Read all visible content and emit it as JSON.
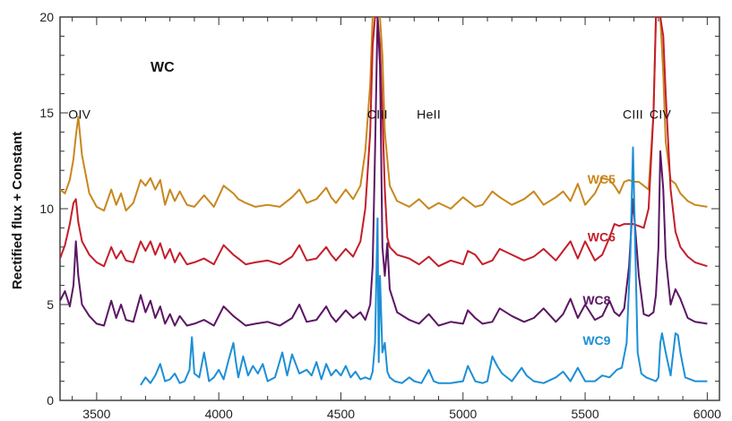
{
  "colors": {
    "axis": "#333333",
    "wc5": "#C8871E",
    "wc6": "#C41E2A",
    "wc8": "#5B1664",
    "wc9": "#1D8FD6"
  },
  "chart_data": {
    "type": "line",
    "title": "WC",
    "xlabel": "",
    "ylabel": "Rectified flux + Constant",
    "xlim": [
      3350,
      6050
    ],
    "ylim": [
      0,
      20
    ],
    "xticks": [
      3500,
      4000,
      4500,
      5000,
      5500,
      6000
    ],
    "yticks": [
      0,
      5,
      10,
      15,
      20
    ],
    "grid": false,
    "line_annotations": [
      {
        "text": "OIV",
        "x": 3430,
        "y": 14.7
      },
      {
        "text": "CIII",
        "x": 4650,
        "y": 14.7
      },
      {
        "text": "HeII",
        "x": 4860,
        "y": 14.7
      },
      {
        "text": "CIII",
        "x": 5696,
        "y": 14.7
      },
      {
        "text": "CIV",
        "x": 5808,
        "y": 14.7
      }
    ],
    "series": [
      {
        "name": "WC5",
        "label_pos": {
          "x": 5510,
          "y": 11.3
        },
        "x": [
          3350,
          3370,
          3390,
          3405,
          3415,
          3425,
          3440,
          3470,
          3500,
          3530,
          3560,
          3580,
          3600,
          3620,
          3650,
          3680,
          3700,
          3720,
          3740,
          3760,
          3780,
          3800,
          3820,
          3840,
          3870,
          3900,
          3940,
          3980,
          4020,
          4060,
          4080,
          4110,
          4150,
          4200,
          4250,
          4300,
          4330,
          4360,
          4400,
          4440,
          4460,
          4480,
          4520,
          4550,
          4580,
          4600,
          4620,
          4630,
          4640,
          4650,
          4660,
          4670,
          4680,
          4700,
          4730,
          4780,
          4820,
          4860,
          4900,
          4950,
          5000,
          5020,
          5050,
          5080,
          5120,
          5150,
          5200,
          5250,
          5290,
          5330,
          5380,
          5410,
          5440,
          5470,
          5500,
          5540,
          5570,
          5600,
          5620,
          5640,
          5660,
          5680,
          5696,
          5720,
          5740,
          5760,
          5780,
          5790,
          5800,
          5808,
          5820,
          5830,
          5850,
          5870,
          5890,
          5920,
          5950,
          6000
        ],
        "y": [
          11.0,
          10.8,
          11.5,
          12.6,
          13.8,
          14.8,
          12.8,
          10.8,
          10.1,
          9.9,
          11.0,
          10.2,
          10.8,
          9.9,
          10.3,
          11.5,
          11.2,
          11.6,
          11.0,
          11.5,
          10.2,
          11.0,
          10.4,
          10.9,
          10.2,
          10.1,
          10.7,
          10.1,
          11.2,
          10.8,
          10.5,
          10.3,
          10.1,
          10.2,
          10.1,
          10.6,
          11.0,
          10.3,
          10.5,
          11.1,
          10.6,
          10.3,
          11.0,
          10.5,
          11.2,
          13.0,
          16.5,
          20,
          20,
          20,
          20,
          18.0,
          14.0,
          11.2,
          10.4,
          10.1,
          10.5,
          10.0,
          10.3,
          10.0,
          10.6,
          10.4,
          10.1,
          10.2,
          10.9,
          10.6,
          10.2,
          10.5,
          10.9,
          10.2,
          10.6,
          10.9,
          10.4,
          11.3,
          10.2,
          10.8,
          11.6,
          11.5,
          11.2,
          10.8,
          11.4,
          11.5,
          11.4,
          11.4,
          11.2,
          11.0,
          15.0,
          20,
          20,
          20,
          17.0,
          13.5,
          11.5,
          11.3,
          10.8,
          10.4,
          10.2,
          10.1
        ]
      },
      {
        "name": "WC6",
        "label_pos": {
          "x": 5510,
          "y": 8.3
        },
        "x": [
          3350,
          3370,
          3390,
          3405,
          3415,
          3425,
          3440,
          3470,
          3500,
          3530,
          3560,
          3580,
          3600,
          3620,
          3650,
          3680,
          3700,
          3720,
          3740,
          3760,
          3780,
          3800,
          3820,
          3840,
          3870,
          3900,
          3940,
          3980,
          4020,
          4060,
          4080,
          4110,
          4150,
          4200,
          4250,
          4300,
          4330,
          4360,
          4400,
          4440,
          4460,
          4480,
          4520,
          4550,
          4580,
          4600,
          4620,
          4630,
          4640,
          4650,
          4660,
          4670,
          4680,
          4690,
          4700,
          4730,
          4780,
          4820,
          4860,
          4900,
          4950,
          5000,
          5020,
          5050,
          5080,
          5120,
          5150,
          5200,
          5250,
          5290,
          5330,
          5380,
          5410,
          5440,
          5470,
          5500,
          5540,
          5570,
          5600,
          5620,
          5640,
          5660,
          5680,
          5696,
          5720,
          5740,
          5760,
          5780,
          5790,
          5800,
          5808,
          5820,
          5830,
          5850,
          5870,
          5890,
          5920,
          5950,
          6000
        ],
        "y": [
          7.4,
          8.1,
          9.2,
          10.3,
          10.5,
          9.3,
          8.3,
          7.6,
          7.2,
          7.0,
          8.0,
          7.4,
          7.8,
          7.3,
          7.2,
          8.3,
          7.8,
          8.3,
          7.6,
          8.2,
          7.4,
          7.9,
          7.2,
          7.7,
          7.1,
          7.2,
          7.4,
          7.1,
          8.1,
          7.6,
          7.4,
          7.1,
          7.2,
          7.3,
          7.1,
          7.5,
          8.1,
          7.3,
          7.4,
          8.0,
          7.6,
          7.3,
          7.9,
          7.5,
          8.3,
          10.0,
          14.0,
          18.5,
          20,
          20,
          18.5,
          15.0,
          11.0,
          8.5,
          8.0,
          7.6,
          7.4,
          7.1,
          7.5,
          7.0,
          7.3,
          7.1,
          7.8,
          7.6,
          7.1,
          7.3,
          7.9,
          7.6,
          7.3,
          7.5,
          7.9,
          7.3,
          7.8,
          8.3,
          7.4,
          8.3,
          7.3,
          7.6,
          8.5,
          9.2,
          9.1,
          9.2,
          9.2,
          9.2,
          9.1,
          9.0,
          10.0,
          15.0,
          20,
          20,
          20,
          19.0,
          16.0,
          11.0,
          8.8,
          8.0,
          7.5,
          7.2,
          7.0
        ]
      },
      {
        "name": "WC8",
        "label_pos": {
          "x": 5490,
          "y": 5.0
        },
        "x": [
          3350,
          3370,
          3390,
          3405,
          3415,
          3425,
          3440,
          3470,
          3500,
          3530,
          3560,
          3580,
          3600,
          3620,
          3650,
          3680,
          3700,
          3720,
          3740,
          3760,
          3780,
          3800,
          3820,
          3840,
          3870,
          3900,
          3940,
          3980,
          4020,
          4060,
          4080,
          4110,
          4150,
          4200,
          4250,
          4300,
          4330,
          4360,
          4400,
          4440,
          4460,
          4480,
          4520,
          4550,
          4580,
          4600,
          4620,
          4630,
          4640,
          4650,
          4660,
          4670,
          4680,
          4690,
          4700,
          4730,
          4780,
          4820,
          4860,
          4900,
          4950,
          5000,
          5020,
          5050,
          5080,
          5120,
          5150,
          5200,
          5250,
          5290,
          5330,
          5380,
          5410,
          5440,
          5470,
          5500,
          5540,
          5570,
          5600,
          5620,
          5640,
          5660,
          5680,
          5696,
          5720,
          5740,
          5760,
          5780,
          5790,
          5800,
          5808,
          5820,
          5830,
          5850,
          5870,
          5890,
          5920,
          5950,
          6000
        ],
        "y": [
          5.2,
          5.7,
          4.9,
          6.0,
          8.3,
          6.5,
          5.0,
          4.4,
          4.0,
          3.9,
          5.2,
          4.3,
          5.0,
          4.2,
          4.1,
          5.5,
          4.6,
          5.2,
          4.3,
          4.9,
          4.0,
          4.5,
          3.9,
          4.4,
          3.9,
          4.0,
          4.2,
          3.9,
          4.9,
          4.4,
          4.2,
          3.9,
          4.0,
          4.1,
          3.9,
          4.3,
          5.0,
          4.1,
          4.2,
          4.9,
          4.4,
          4.1,
          4.7,
          4.3,
          4.6,
          4.2,
          5.0,
          7.0,
          13.0,
          20,
          17.5,
          8.0,
          6.5,
          8.2,
          5.8,
          4.6,
          4.2,
          4.0,
          4.5,
          3.9,
          4.1,
          4.0,
          4.7,
          4.3,
          4.0,
          4.1,
          4.8,
          4.4,
          4.1,
          4.3,
          4.8,
          4.1,
          4.5,
          5.3,
          4.3,
          5.0,
          4.2,
          4.4,
          5.2,
          4.6,
          4.4,
          4.8,
          7.0,
          10.5,
          6.5,
          4.5,
          4.4,
          4.6,
          5.5,
          8.0,
          13.0,
          11.0,
          7.5,
          5.0,
          5.8,
          5.3,
          4.3,
          4.1,
          4.0
        ]
      },
      {
        "name": "WC9",
        "label_pos": {
          "x": 5490,
          "y": 2.9
        },
        "x": [
          3680,
          3700,
          3720,
          3740,
          3760,
          3780,
          3800,
          3820,
          3840,
          3860,
          3880,
          3890,
          3900,
          3920,
          3940,
          3960,
          3980,
          4000,
          4020,
          4040,
          4060,
          4070,
          4080,
          4100,
          4120,
          4140,
          4160,
          4180,
          4200,
          4230,
          4260,
          4280,
          4300,
          4330,
          4360,
          4380,
          4400,
          4420,
          4440,
          4460,
          4480,
          4500,
          4520,
          4540,
          4560,
          4580,
          4600,
          4620,
          4630,
          4640,
          4650,
          4655,
          4660,
          4670,
          4680,
          4690,
          4700,
          4720,
          4750,
          4780,
          4800,
          4830,
          4860,
          4880,
          4900,
          4950,
          5000,
          5020,
          5050,
          5080,
          5100,
          5120,
          5140,
          5160,
          5200,
          5240,
          5260,
          5290,
          5330,
          5380,
          5410,
          5440,
          5470,
          5500,
          5540,
          5570,
          5600,
          5630,
          5650,
          5670,
          5685,
          5696,
          5705,
          5715,
          5730,
          5750,
          5770,
          5790,
          5800,
          5808,
          5815,
          5830,
          5850,
          5870,
          5880,
          5890,
          5910,
          5950,
          6000
        ],
        "y": [
          0.8,
          1.2,
          0.9,
          1.3,
          1.9,
          1.0,
          1.1,
          1.4,
          0.9,
          1.0,
          1.6,
          3.3,
          1.4,
          1.2,
          2.5,
          1.0,
          1.2,
          1.6,
          1.1,
          2.1,
          3.0,
          2.0,
          1.2,
          2.3,
          1.3,
          1.8,
          1.4,
          1.9,
          1.0,
          1.2,
          2.5,
          1.3,
          2.4,
          1.4,
          1.6,
          1.3,
          2.0,
          1.1,
          1.9,
          1.3,
          1.6,
          1.3,
          1.8,
          1.2,
          1.5,
          1.1,
          1.2,
          1.1,
          1.5,
          3.0,
          9.5,
          2.0,
          6.5,
          2.5,
          3.0,
          1.5,
          1.2,
          1.0,
          0.9,
          1.2,
          1.0,
          0.9,
          1.6,
          1.0,
          0.9,
          0.9,
          1.0,
          1.8,
          1.0,
          0.9,
          1.0,
          2.3,
          1.8,
          1.4,
          1.0,
          1.7,
          1.3,
          1.0,
          0.9,
          1.2,
          1.5,
          1.0,
          1.7,
          1.0,
          1.0,
          1.3,
          1.2,
          1.6,
          1.7,
          3.0,
          7.5,
          13.2,
          8.0,
          2.5,
          1.4,
          1.2,
          1.1,
          1.0,
          1.2,
          3.0,
          3.5,
          2.5,
          1.3,
          3.5,
          3.4,
          2.5,
          1.2,
          1.0,
          1.0
        ]
      }
    ]
  }
}
